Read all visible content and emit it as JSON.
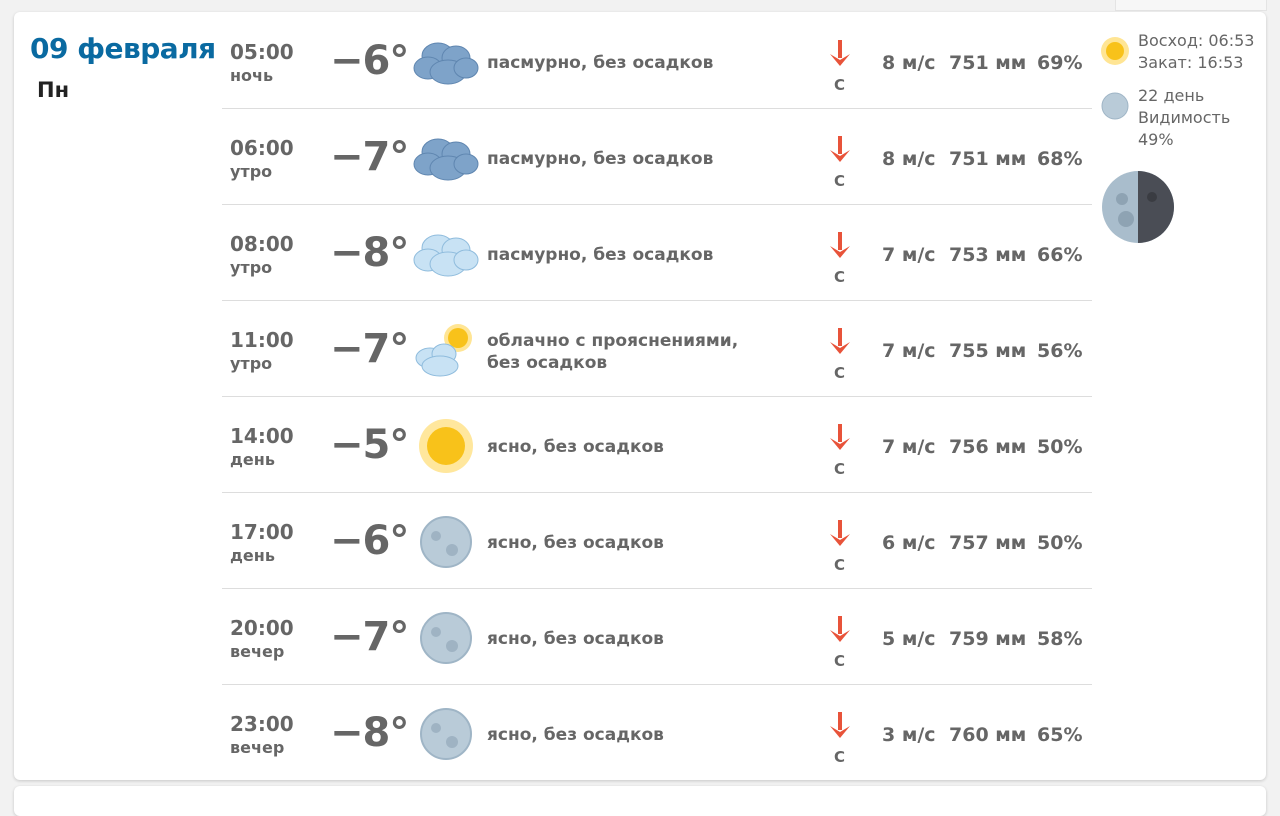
{
  "day": {
    "date": "09 февраля",
    "weekday": "Пн"
  },
  "rows": [
    {
      "time": "05:00",
      "part": "ночь",
      "temp": "−6°",
      "icon": "overcast-icon",
      "desc": "пасмурно, без осадков",
      "wind": "8 м/с",
      "dir": "С",
      "pressure": "751 мм",
      "humidity": "69%"
    },
    {
      "time": "06:00",
      "part": "утро",
      "temp": "−7°",
      "icon": "overcast-icon",
      "desc": "пасмурно, без осадков",
      "wind": "8 м/с",
      "dir": "С",
      "pressure": "751 мм",
      "humidity": "68%"
    },
    {
      "time": "08:00",
      "part": "утро",
      "temp": "−8°",
      "icon": "cloudy-icon",
      "desc": "пасмурно, без осадков",
      "wind": "7 м/с",
      "dir": "С",
      "pressure": "753 мм",
      "humidity": "66%"
    },
    {
      "time": "11:00",
      "part": "утро",
      "temp": "−7°",
      "icon": "partly-cloudy-icon",
      "desc": "облачно с прояснениями, без осадков",
      "wind": "7 м/с",
      "dir": "С",
      "pressure": "755 мм",
      "humidity": "56%"
    },
    {
      "time": "14:00",
      "part": "день",
      "temp": "−5°",
      "icon": "sun-icon",
      "desc": "ясно, без осадков",
      "wind": "7 м/с",
      "dir": "С",
      "pressure": "756 мм",
      "humidity": "50%"
    },
    {
      "time": "17:00",
      "part": "день",
      "temp": "−6°",
      "icon": "moon-icon",
      "desc": "ясно, без осадков",
      "wind": "6 м/с",
      "dir": "С",
      "pressure": "757 мм",
      "humidity": "50%"
    },
    {
      "time": "20:00",
      "part": "вечер",
      "temp": "−7°",
      "icon": "moon-icon",
      "desc": "ясно, без осадков",
      "wind": "5 м/с",
      "dir": "С",
      "pressure": "759 мм",
      "humidity": "58%"
    },
    {
      "time": "23:00",
      "part": "вечер",
      "temp": "−8°",
      "icon": "moon-icon",
      "desc": "ясно, без осадков",
      "wind": "3 м/с",
      "dir": "С",
      "pressure": "760 мм",
      "humidity": "65%"
    }
  ],
  "astro": {
    "sunrise": "Восход: 06:53",
    "sunset": "Закат: 16:53",
    "moon_day": "22 день",
    "visibility_label": "Видимость",
    "visibility": "49%"
  },
  "colors": {
    "date": "#0a6aa1",
    "arrow": "#e8533a"
  }
}
